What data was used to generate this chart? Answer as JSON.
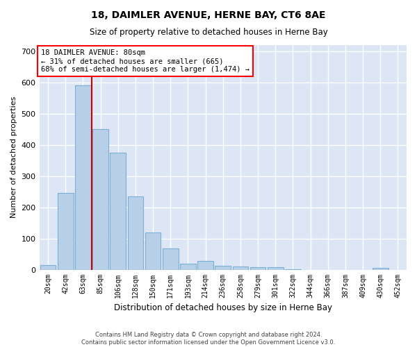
{
  "title": "18, DAIMLER AVENUE, HERNE BAY, CT6 8AE",
  "subtitle": "Size of property relative to detached houses in Herne Bay",
  "xlabel": "Distribution of detached houses by size in Herne Bay",
  "ylabel": "Number of detached properties",
  "categories": [
    "20sqm",
    "42sqm",
    "63sqm",
    "85sqm",
    "106sqm",
    "128sqm",
    "150sqm",
    "171sqm",
    "193sqm",
    "214sqm",
    "236sqm",
    "258sqm",
    "279sqm",
    "301sqm",
    "322sqm",
    "344sqm",
    "366sqm",
    "387sqm",
    "409sqm",
    "430sqm",
    "452sqm"
  ],
  "bar_heights": [
    15,
    245,
    590,
    450,
    375,
    235,
    120,
    68,
    18,
    28,
    12,
    10,
    8,
    8,
    2,
    0,
    0,
    0,
    0,
    5,
    0
  ],
  "bar_color": "#b8cfe8",
  "bar_edge_color": "#7bafd4",
  "background_color": "#dce6f5",
  "grid_color": "#ffffff",
  "annotation_line1": "18 DAIMLER AVENUE: 80sqm",
  "annotation_line2": "← 31% of detached houses are smaller (665)",
  "annotation_line3": "68% of semi-detached houses are larger (1,474) →",
  "vline_color": "#cc0000",
  "vline_x_index": 2,
  "ylim": [
    0,
    720
  ],
  "yticks": [
    0,
    100,
    200,
    300,
    400,
    500,
    600,
    700
  ],
  "footer_line1": "Contains HM Land Registry data © Crown copyright and database right 2024.",
  "footer_line2": "Contains public sector information licensed under the Open Government Licence v3.0."
}
